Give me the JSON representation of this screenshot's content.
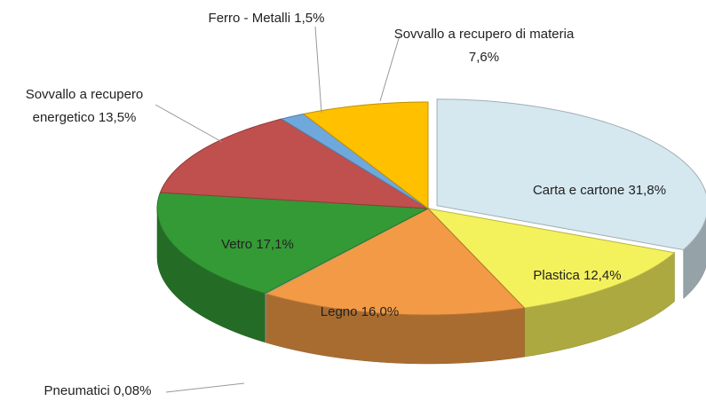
{
  "chart_data": {
    "type": "pie",
    "categories": [
      "Carta e cartone",
      "Plastica",
      "Legno",
      "Pneumatici",
      "Vetro",
      "Sovvallo a recupero energetico",
      "Ferro - Metalli",
      "Sovvallo a recupero di materia"
    ],
    "values": [
      31.8,
      12.4,
      16.0,
      0.08,
      17.1,
      13.5,
      1.5,
      7.6
    ],
    "value_labels": [
      "31,8%",
      "12,4%",
      "16,0%",
      "0,08%",
      "17,1%",
      "13,5%",
      "1,5%",
      "7,6%"
    ],
    "colors": [
      "#d5e8f0",
      "#f4f25c",
      "#f29a45",
      "#d9d9d9",
      "#349a35",
      "#c0504d",
      "#6fa8dc",
      "#ffc000"
    ]
  }
}
